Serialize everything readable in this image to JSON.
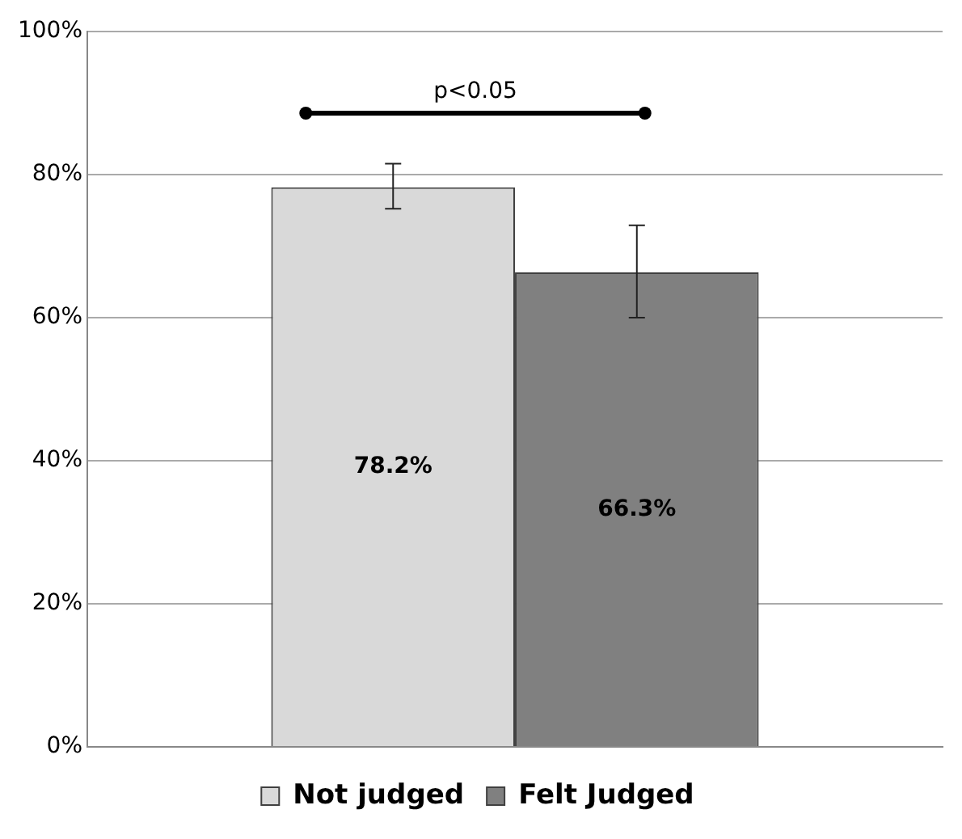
{
  "chart_data": {
    "type": "bar",
    "categories": [
      null
    ],
    "series": [
      {
        "name": "Not judged",
        "color": "#d9d9d9",
        "values": [
          78.2
        ],
        "errors": [
          [
            75.2,
            81.5
          ]
        ],
        "value_labels": [
          "78.2%"
        ]
      },
      {
        "name": "Felt Judged",
        "color": "#808080",
        "values": [
          66.3
        ],
        "errors": [
          [
            60.0,
            72.9
          ]
        ],
        "value_labels": [
          "66.3%"
        ]
      }
    ],
    "ylim": [
      0,
      100
    ],
    "yticks": [
      {
        "value": 0,
        "label": "0%"
      },
      {
        "value": 20,
        "label": "20%"
      },
      {
        "value": 40,
        "label": "40%"
      },
      {
        "value": 60,
        "label": "60%"
      },
      {
        "value": 80,
        "label": "80%"
      },
      {
        "value": 100,
        "label": "100%"
      }
    ],
    "annotations": [
      "p<0.05"
    ],
    "grid": "y",
    "legend": "bottom"
  }
}
